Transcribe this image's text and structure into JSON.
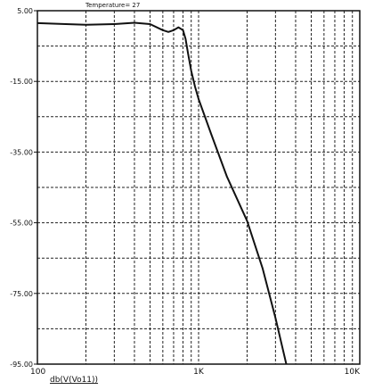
{
  "chart_data": {
    "type": "line",
    "title": "",
    "top_label": "Temperature= 27",
    "xlabel": "db(V(Vo11))",
    "ylabel": "",
    "x_scale": "log",
    "xlim": [
      100,
      10000
    ],
    "ylim": [
      -95,
      5
    ],
    "x_ticks": [
      {
        "value": 100,
        "label": "100"
      },
      {
        "value": 1000,
        "label": "1K"
      },
      {
        "value": 10000,
        "label": "10K"
      }
    ],
    "y_ticks": [
      {
        "value": 5,
        "label": "5.00"
      },
      {
        "value": -15,
        "label": "-15.00"
      },
      {
        "value": -35,
        "label": "-35.00"
      },
      {
        "value": -55,
        "label": "-55.00"
      },
      {
        "value": -75,
        "label": "-75.00"
      },
      {
        "value": -95,
        "label": "-95.00"
      }
    ],
    "grid": true,
    "grid_style": "dashed",
    "series": [
      {
        "color": "#111111",
        "x": [
          100,
          150,
          200,
          300,
          400,
          500,
          600,
          650,
          700,
          750,
          800,
          830,
          860,
          900,
          950,
          1000,
          1200,
          1500,
          2000,
          2500,
          3000,
          3500
        ],
        "y": [
          1.5,
          1.2,
          1.0,
          1.2,
          1.6,
          1.2,
          -0.5,
          -1.0,
          -0.5,
          0.3,
          -0.5,
          -3.0,
          -7.0,
          -12.0,
          -16.5,
          -20.0,
          -30.0,
          -42.0,
          -54.5,
          -68.0,
          -82.0,
          -95.0
        ]
      }
    ]
  }
}
